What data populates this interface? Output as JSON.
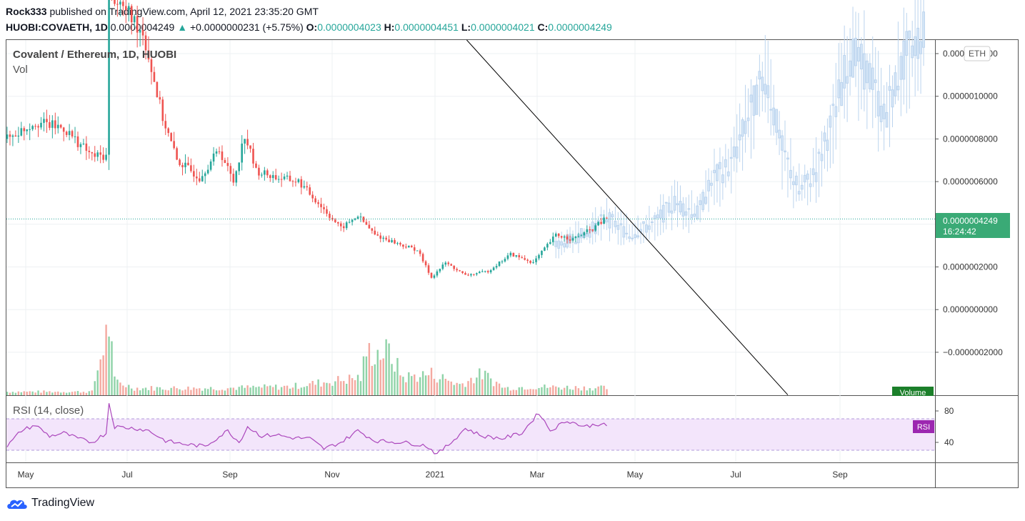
{
  "header": {
    "author": "Rock333",
    "published": "published on TradingView.com, April 12, 2021 23:35:20 GMT",
    "symbol": "HUOBI:COVAETH, 1D",
    "last": "0.0000004249",
    "change": "+0.0000000231 (+5.75%)",
    "o_label": "O:",
    "o_value": "0.0000004023",
    "h_label": "H:",
    "h_value": "0.0000004451",
    "l_label": "L:",
    "l_value": "0.0000004021",
    "c_label": "C:",
    "c_value": "0.0000004249"
  },
  "legend": {
    "title": "Covalent / Ethereum, 1D, HUOBI",
    "vol": "Vol",
    "rsi": "RSI (14, close)"
  },
  "price_axis": {
    "currency": "ETH",
    "last_price": "0.0000004249",
    "countdown": "16:24:42",
    "volume_tag": "Volume",
    "rsi_tag": "RSI"
  },
  "footer": {
    "brand": "TradingView"
  },
  "colors": {
    "up": "#26a69a",
    "down": "#ef5350",
    "projection": "#bbd4ee",
    "rsi_line": "#ab47bc",
    "rsi_band": "#f3e5fb",
    "trendline": "#000000"
  },
  "chart_data": {
    "type": "candlestick",
    "x_ticks": [
      "May",
      "Jul",
      "Sep",
      "Nov",
      "2021",
      "Mar",
      "May",
      "Jul",
      "Sep"
    ],
    "price_ticks": [
      "0.0000012000",
      "0.0000010000",
      "0.0000008000",
      "0.0000006000",
      "0.0000004000",
      "0.0000002000",
      "0.0000000000",
      "−0.0000002000"
    ],
    "rsi_ticks": [
      "80",
      "40"
    ],
    "rsi_levels": [
      70,
      30
    ],
    "ylim": [
      -4e-07,
      1.2e-06
    ],
    "last_price": 4.249e-07,
    "price_path": [
      [
        0,
        8e-07
      ],
      [
        10,
        8.8e-07
      ],
      [
        20,
        8.5e-07
      ],
      [
        30,
        7.2e-07
      ],
      [
        35,
        7.2e-07
      ],
      [
        36,
        1.5e-06
      ],
      [
        48,
        1.3e-06
      ],
      [
        55,
        9e-07
      ],
      [
        60,
        7e-07
      ],
      [
        68,
        6.2e-07
      ],
      [
        75,
        7.5e-07
      ],
      [
        80,
        6e-07
      ],
      [
        84,
        8.2e-07
      ],
      [
        88,
        6.5e-07
      ],
      [
        95,
        6.2e-07
      ],
      [
        103,
        6e-07
      ],
      [
        110,
        5e-07
      ],
      [
        118,
        3.8e-07
      ],
      [
        124,
        4.4e-07
      ],
      [
        130,
        3.5e-07
      ],
      [
        140,
        3e-07
      ],
      [
        145,
        2.8e-07
      ],
      [
        150,
        1.5e-07
      ],
      [
        155,
        2.2e-07
      ],
      [
        162,
        1.6e-07
      ],
      [
        170,
        1.8e-07
      ],
      [
        178,
        2.6e-07
      ],
      [
        186,
        2.2e-07
      ],
      [
        194,
        3.5e-07
      ],
      [
        200,
        3.3e-07
      ],
      [
        207,
        3.8e-07
      ],
      [
        212,
        4.3e-07
      ]
    ],
    "projection_path": [
      [
        194,
        3e-07
      ],
      [
        205,
        3.6e-07
      ],
      [
        212,
        4.3e-07
      ],
      [
        220,
        3.5e-07
      ],
      [
        228,
        4e-07
      ],
      [
        236,
        5e-07
      ],
      [
        244,
        4.5e-07
      ],
      [
        250,
        6.2e-07
      ],
      [
        256,
        6.8e-07
      ],
      [
        262,
        9e-07
      ],
      [
        268,
        1.1e-06
      ],
      [
        274,
        7.5e-07
      ],
      [
        280,
        5.5e-07
      ],
      [
        286,
        6.5e-07
      ],
      [
        292,
        9e-07
      ],
      [
        298,
        1.2e-06
      ],
      [
        305,
        1.1e-06
      ],
      [
        310,
        9e-07
      ],
      [
        318,
        1.2e-06
      ],
      [
        324,
        1.3e-06
      ]
    ],
    "volume_path": [
      [
        0,
        0.05
      ],
      [
        30,
        0.05
      ],
      [
        36,
        1.0
      ],
      [
        38,
        0.2
      ],
      [
        45,
        0.1
      ],
      [
        75,
        0.1
      ],
      [
        100,
        0.12
      ],
      [
        125,
        0.25
      ],
      [
        127,
        0.6
      ],
      [
        135,
        0.6
      ],
      [
        140,
        0.25
      ],
      [
        150,
        0.3
      ],
      [
        160,
        0.15
      ],
      [
        168,
        0.3
      ],
      [
        176,
        0.1
      ],
      [
        185,
        0.12
      ],
      [
        212,
        0.1
      ]
    ],
    "rsi_path": [
      [
        0,
        35
      ],
      [
        5,
        55
      ],
      [
        10,
        62
      ],
      [
        15,
        48
      ],
      [
        20,
        52
      ],
      [
        25,
        45
      ],
      [
        30,
        40
      ],
      [
        35,
        52
      ],
      [
        36,
        90
      ],
      [
        38,
        60
      ],
      [
        45,
        58
      ],
      [
        50,
        55
      ],
      [
        56,
        42
      ],
      [
        62,
        38
      ],
      [
        70,
        35
      ],
      [
        78,
        55
      ],
      [
        82,
        40
      ],
      [
        85,
        60
      ],
      [
        90,
        48
      ],
      [
        95,
        50
      ],
      [
        100,
        46
      ],
      [
        107,
        45
      ],
      [
        112,
        32
      ],
      [
        118,
        40
      ],
      [
        124,
        55
      ],
      [
        130,
        42
      ],
      [
        140,
        40
      ],
      [
        148,
        36
      ],
      [
        152,
        25
      ],
      [
        157,
        40
      ],
      [
        162,
        58
      ],
      [
        168,
        48
      ],
      [
        175,
        45
      ],
      [
        182,
        52
      ],
      [
        188,
        78
      ],
      [
        192,
        55
      ],
      [
        198,
        68
      ],
      [
        204,
        60
      ],
      [
        210,
        64
      ],
      [
        212,
        60
      ]
    ],
    "trendline": {
      "start": [
        160,
        1.3e-06
      ],
      "end": [
        276,
        -4e-07
      ]
    }
  }
}
